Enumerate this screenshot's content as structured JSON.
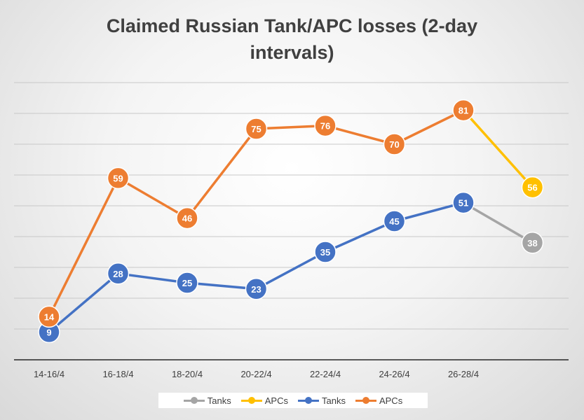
{
  "chart_data": {
    "type": "line",
    "title": "Claimed Russian Tank/APC losses (2-day intervals)",
    "title_lines": [
      "Claimed Russian Tank/APC losses (2-day",
      "intervals)"
    ],
    "categories": [
      "14-16/4",
      "16-18/4",
      "18-20/4",
      "20-22/4",
      "22-24/4",
      "24-26/4",
      "26-28/4",
      ""
    ],
    "ylim": [
      0,
      90
    ],
    "grid": true,
    "legend_position": "bottom",
    "series": [
      {
        "name": "Tanks",
        "color": "#4472C4",
        "values": [
          9,
          28,
          25,
          23,
          35,
          45,
          51,
          null
        ]
      },
      {
        "name": "APCs",
        "color": "#ED7D31",
        "values": [
          14,
          59,
          46,
          75,
          76,
          70,
          81,
          null
        ]
      },
      {
        "name": "Tanks",
        "color": "#A5A5A5",
        "values": [
          null,
          null,
          null,
          null,
          null,
          null,
          51,
          38
        ],
        "labeled_points": [
          7
        ]
      },
      {
        "name": "APCs",
        "color": "#FFC000",
        "values": [
          null,
          null,
          null,
          null,
          null,
          null,
          81,
          56
        ],
        "labeled_points": [
          7
        ]
      }
    ],
    "legend": [
      {
        "label": "Tanks",
        "color": "#A5A5A5"
      },
      {
        "label": "APCs",
        "color": "#FFC000"
      },
      {
        "label": "Tanks",
        "color": "#4472C4"
      },
      {
        "label": "APCs",
        "color": "#ED7D31"
      }
    ]
  }
}
